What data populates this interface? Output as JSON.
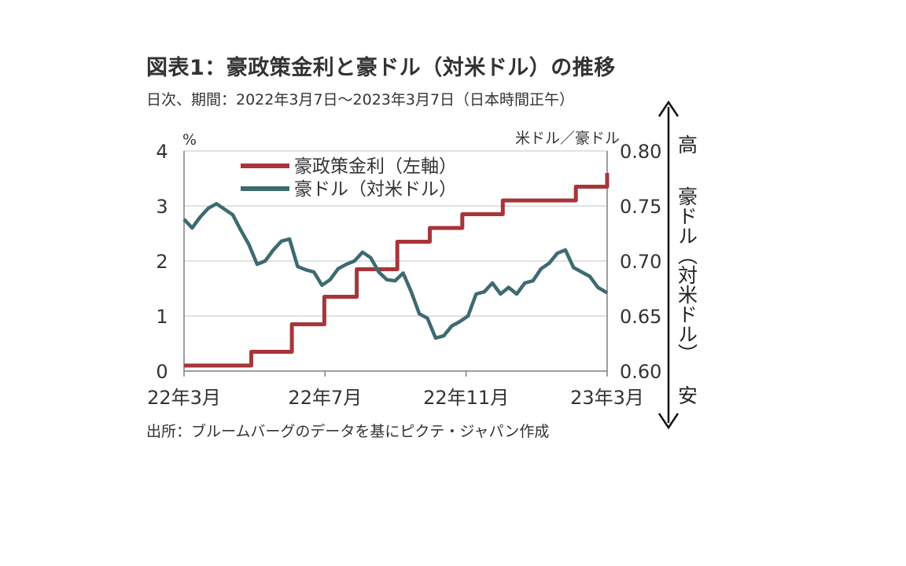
{
  "title": "図表1：豪政策金利と豪ドル（対米ドル）の推移",
  "subtitle": "日次、期間：2022年3月7日～2023年3月7日（日本時間正午）",
  "source": "出所：ブルームバーグのデータを基にピクテ・ジャパン作成",
  "colors": {
    "rate": "#a8353a",
    "aud": "#3d6b6f",
    "grid": "#d9d9d9",
    "axis": "#7f7f7f"
  },
  "chart_data": {
    "type": "line",
    "title": "図表1：豪政策金利と豪ドル（対米ドル）の推移",
    "xlabel": "",
    "x_ticks": [
      "22年3月",
      "22年7月",
      "22年11月",
      "23年3月"
    ],
    "x_range": [
      "2022-03-07",
      "2023-03-07"
    ],
    "y_left": {
      "label": "%",
      "ticks": [
        "0",
        "1",
        "2",
        "3",
        "4"
      ],
      "range": [
        0,
        4
      ]
    },
    "y_right": {
      "label": "米ドル／豪ドル",
      "ticks": [
        "0.60",
        "0.65",
        "0.70",
        "0.75",
        "0.80"
      ],
      "range": [
        0.6,
        0.8
      ]
    },
    "right_annotation": {
      "top": "高",
      "middle": "豪ドル（対米ドル）",
      "bottom": "安"
    },
    "legend_position": "top-left",
    "grid": true,
    "series": [
      {
        "name": "豪政策金利（左軸）",
        "axis": "left",
        "step": true,
        "x": [
          "2022-03-07",
          "2022-05-04",
          "2022-06-08",
          "2022-07-06",
          "2022-08-03",
          "2022-09-07",
          "2022-10-05",
          "2022-11-02",
          "2022-12-07",
          "2023-02-08",
          "2023-03-07"
        ],
        "values": [
          0.1,
          0.35,
          0.85,
          1.35,
          1.85,
          2.35,
          2.6,
          2.85,
          3.1,
          3.35,
          3.6
        ]
      },
      {
        "name": "豪ドル（対米ドル）",
        "axis": "right",
        "x": [
          "2022-03-07",
          "2022-03-14",
          "2022-03-21",
          "2022-03-28",
          "2022-04-04",
          "2022-04-11",
          "2022-04-18",
          "2022-04-25",
          "2022-05-02",
          "2022-05-09",
          "2022-05-16",
          "2022-05-23",
          "2022-05-30",
          "2022-06-06",
          "2022-06-13",
          "2022-06-20",
          "2022-06-27",
          "2022-07-04",
          "2022-07-11",
          "2022-07-18",
          "2022-07-25",
          "2022-08-01",
          "2022-08-08",
          "2022-08-15",
          "2022-08-22",
          "2022-08-29",
          "2022-09-05",
          "2022-09-12",
          "2022-09-19",
          "2022-09-26",
          "2022-10-03",
          "2022-10-10",
          "2022-10-17",
          "2022-10-24",
          "2022-10-31",
          "2022-11-07",
          "2022-11-14",
          "2022-11-21",
          "2022-11-28",
          "2022-12-05",
          "2022-12-12",
          "2022-12-19",
          "2022-12-26",
          "2023-01-02",
          "2023-01-09",
          "2023-01-16",
          "2023-01-23",
          "2023-01-30",
          "2023-02-06",
          "2023-02-13",
          "2023-02-20",
          "2023-02-27",
          "2023-03-07"
        ],
        "values": [
          0.738,
          0.73,
          0.74,
          0.748,
          0.752,
          0.747,
          0.742,
          0.728,
          0.715,
          0.697,
          0.7,
          0.71,
          0.718,
          0.72,
          0.695,
          0.692,
          0.69,
          0.678,
          0.683,
          0.693,
          0.697,
          0.7,
          0.708,
          0.703,
          0.69,
          0.683,
          0.682,
          0.689,
          0.672,
          0.652,
          0.648,
          0.63,
          0.632,
          0.641,
          0.645,
          0.65,
          0.67,
          0.672,
          0.68,
          0.67,
          0.676,
          0.67,
          0.68,
          0.682,
          0.693,
          0.698,
          0.707,
          0.71,
          0.694,
          0.69,
          0.686,
          0.676,
          0.671
        ]
      }
    ]
  }
}
